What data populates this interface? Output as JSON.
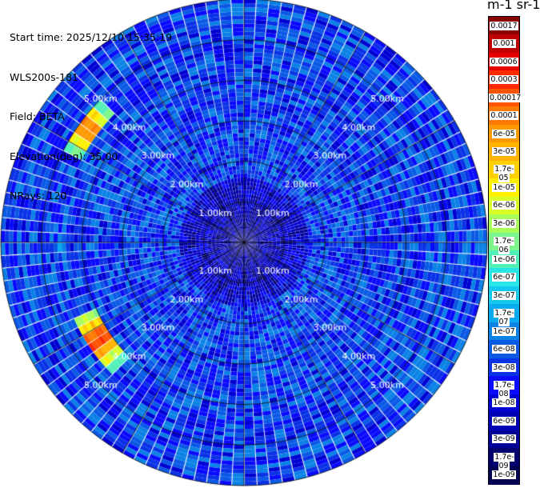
{
  "info": {
    "start_time": "Start time: 2025/12/10 15:35:19",
    "station": "WLS200s-181",
    "field": "Field: BETA",
    "elevation": "Elevation(deg): 35.00",
    "nrays": "NRays: 120"
  },
  "colorbar": {
    "unit_label": "m-1 sr-1",
    "ticks": [
      "0.0017",
      "0.001",
      "0.0006",
      "0.0003",
      "0.00017",
      "0.0001",
      "6e-05",
      "3e-05",
      "1.7e-05",
      "1e-05",
      "6e-06",
      "3e-06",
      "1.7e-06",
      "1e-06",
      "6e-07",
      "3e-07",
      "1.7e-07",
      "1e-07",
      "6e-08",
      "3e-08",
      "1.7e-08",
      "1e-08",
      "6e-09",
      "3e-09",
      "1.7e-09",
      "1e-09"
    ],
    "colors": [
      "#8b0000",
      "#c00000",
      "#e60000",
      "#ff2a00",
      "#ff5500",
      "#ff7a00",
      "#ff9900",
      "#ffb300",
      "#ffd000",
      "#fff000",
      "#d8ff28",
      "#a8ff5a",
      "#7cf58a",
      "#50f0b8",
      "#28e6e6",
      "#14c8f0",
      "#0aaaf0",
      "#0a82e6",
      "#0a5ae6",
      "#0a32e6",
      "#0a0aff",
      "#0000d2",
      "#0000b4",
      "#000096",
      "#00006e",
      "#000050"
    ]
  },
  "range_labels": [
    "1.00km",
    "2.00km",
    "3.00km",
    "4.00km",
    "5.00km"
  ],
  "chart_data": {
    "type": "heatmap",
    "title": "",
    "field": "BETA",
    "units": "m-1 sr-1",
    "elevation_deg": 35.0,
    "n_rays": 120,
    "range_rings_km": [
      1,
      2,
      3,
      4,
      5
    ],
    "max_range_km": 6.0,
    "color_scale": "log",
    "scale_min": 1e-09,
    "scale_max": 0.0017,
    "background_level": 3e-08,
    "features": [
      {
        "name": "plume-northwest",
        "azimuth_deg": [
          297,
          315
        ],
        "range_km": [
          4.5,
          5.0
        ],
        "peak_value": 0.0003
      },
      {
        "name": "plume-southwest",
        "azimuth_deg": [
          226,
          247
        ],
        "range_km": [
          4.0,
          4.6
        ],
        "peak_value": 0.0006
      },
      {
        "name": "patch-west",
        "azimuth_deg": [
          268,
          272
        ],
        "range_km": [
          4.5,
          4.6
        ],
        "peak_value": 1e-06
      }
    ]
  }
}
